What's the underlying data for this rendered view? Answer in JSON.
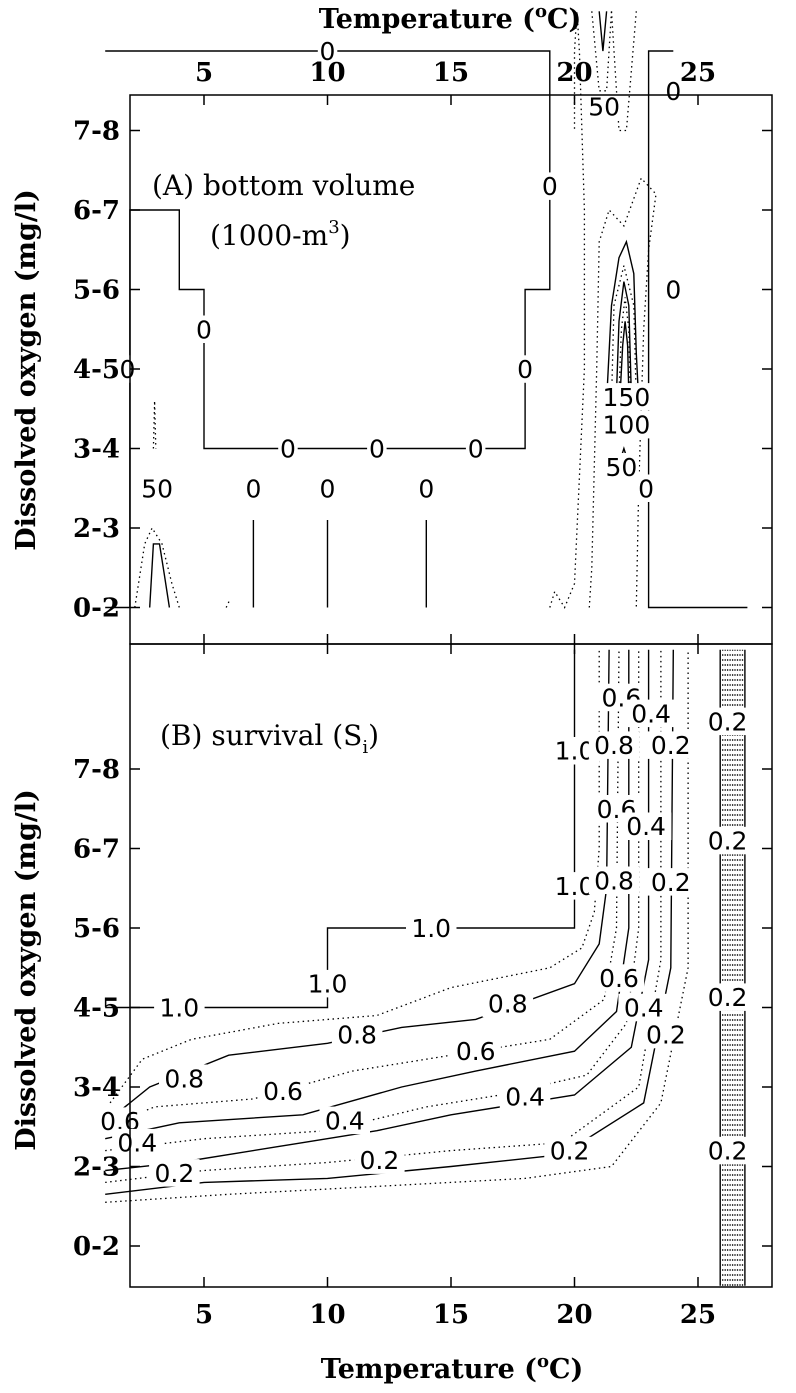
{
  "chart_data": [
    {
      "type": "contour",
      "panel_label": "(A) bottom volume",
      "panel_sublabel": "(1000-m",
      "panel_sublabel_sup": "3",
      "panel_sublabel_end": ")",
      "xlabel": "Temperature (",
      "xlabel_sup": "o",
      "xlabel_end": "C)",
      "ylabel": "Dissolved oxygen (mg/l)",
      "xlim": [
        1,
        27
      ],
      "x_ticks": [
        5,
        10,
        15,
        20,
        25
      ],
      "x_tick_labels": [
        "5",
        "10",
        "15",
        "20",
        "25"
      ],
      "y_categories": [
        "0-2",
        "2-3",
        "3-4",
        "4-5",
        "5-6",
        "6-7",
        "7-8"
      ],
      "contour_levels": [
        0,
        50,
        100,
        150
      ],
      "contour_labels": [
        {
          "text": "0",
          "x": 10,
          "y": 7
        },
        {
          "text": "0",
          "x": 24,
          "y": 6.5
        },
        {
          "text": "50",
          "x": 21.2,
          "y": 6.3
        },
        {
          "text": "0",
          "x": 19,
          "y": 5.3
        },
        {
          "text": "0",
          "x": 24,
          "y": 4
        },
        {
          "text": "0",
          "x": 5,
          "y": 3.5
        },
        {
          "text": "0",
          "x": 1.9,
          "y": 3
        },
        {
          "text": "0",
          "x": 18,
          "y": 3
        },
        {
          "text": "150",
          "x": 22.1,
          "y": 2.65
        },
        {
          "text": "100",
          "x": 22.1,
          "y": 2.3
        },
        {
          "text": "0",
          "x": 8.4,
          "y": 2
        },
        {
          "text": "0",
          "x": 12,
          "y": 2
        },
        {
          "text": "0",
          "x": 16,
          "y": 2
        },
        {
          "text": "50",
          "x": 3.1,
          "y": 1.5
        },
        {
          "text": "0",
          "x": 7,
          "y": 1.5
        },
        {
          "text": "0",
          "x": 10,
          "y": 1.5
        },
        {
          "text": "0",
          "x": 14,
          "y": 1.5
        },
        {
          "text": "50",
          "x": 21.9,
          "y": 1.77
        },
        {
          "text": "0",
          "x": 22.9,
          "y": 1.5
        }
      ]
    },
    {
      "type": "contour",
      "panel_label": "(B) survival (S",
      "panel_label_sub": "i",
      "panel_label_end": ")",
      "xlabel": "Temperature (",
      "xlabel_sup": "o",
      "xlabel_end": "C)",
      "ylabel": "Dissolved oxygen (mg/l)",
      "xlim": [
        1,
        27
      ],
      "x_ticks": [
        5,
        10,
        15,
        20,
        25
      ],
      "x_tick_labels": [
        "5",
        "10",
        "15",
        "20",
        "25"
      ],
      "y_categories": [
        "0-2",
        "2-3",
        "3-4",
        "4-5",
        "5-6",
        "6-7",
        "7-8"
      ],
      "contour_levels": [
        0.2,
        0.4,
        0.6,
        0.8,
        1.0
      ],
      "contour_labels": [
        {
          "text": "0.6",
          "x": 21.9,
          "y": 6.9
        },
        {
          "text": "0.4",
          "x": 23.1,
          "y": 6.7
        },
        {
          "text": "0.2",
          "x": 26.2,
          "y": 6.6
        },
        {
          "text": "1.0",
          "x": 20.0,
          "y": 6.23
        },
        {
          "text": "0.8",
          "x": 21.6,
          "y": 6.3
        },
        {
          "text": "0.2",
          "x": 23.9,
          "y": 6.3
        },
        {
          "text": "0.6",
          "x": 21.7,
          "y": 5.5
        },
        {
          "text": "0.4",
          "x": 22.9,
          "y": 5.28
        },
        {
          "text": "0.2",
          "x": 26.2,
          "y": 5.1
        },
        {
          "text": "1.0",
          "x": 20.0,
          "y": 4.53
        },
        {
          "text": "0.8",
          "x": 21.6,
          "y": 4.6
        },
        {
          "text": "0.2",
          "x": 23.9,
          "y": 4.58
        },
        {
          "text": "1.0",
          "x": 14.2,
          "y": 4.0
        },
        {
          "text": "1.0",
          "x": 10.0,
          "y": 3.3
        },
        {
          "text": "0.6",
          "x": 21.8,
          "y": 3.37
        },
        {
          "text": "1.0",
          "x": 4.0,
          "y": 3.0
        },
        {
          "text": "0.8",
          "x": 17.3,
          "y": 3.05
        },
        {
          "text": "0.4",
          "x": 22.8,
          "y": 3.0
        },
        {
          "text": "0.2",
          "x": 26.2,
          "y": 3.13
        },
        {
          "text": "0.8",
          "x": 11.2,
          "y": 2.66
        },
        {
          "text": "0.2",
          "x": 23.7,
          "y": 2.66
        },
        {
          "text": "0.6",
          "x": 16.0,
          "y": 2.45
        },
        {
          "text": "0.8",
          "x": 4.2,
          "y": 2.11
        },
        {
          "text": "0.6",
          "x": 8.2,
          "y": 1.95
        },
        {
          "text": "0.4",
          "x": 18.0,
          "y": 1.88
        },
        {
          "text": "0.6",
          "x": 1.6,
          "y": 1.57
        },
        {
          "text": "0.4",
          "x": 10.7,
          "y": 1.58
        },
        {
          "text": "0.4",
          "x": 2.3,
          "y": 1.3
        },
        {
          "text": "0.2",
          "x": 19.8,
          "y": 1.2
        },
        {
          "text": "0.2",
          "x": 12.1,
          "y": 1.08
        },
        {
          "text": "0.2",
          "x": 3.8,
          "y": 0.92
        },
        {
          "text": "0.2",
          "x": 26.2,
          "y": 1.2
        }
      ]
    }
  ]
}
